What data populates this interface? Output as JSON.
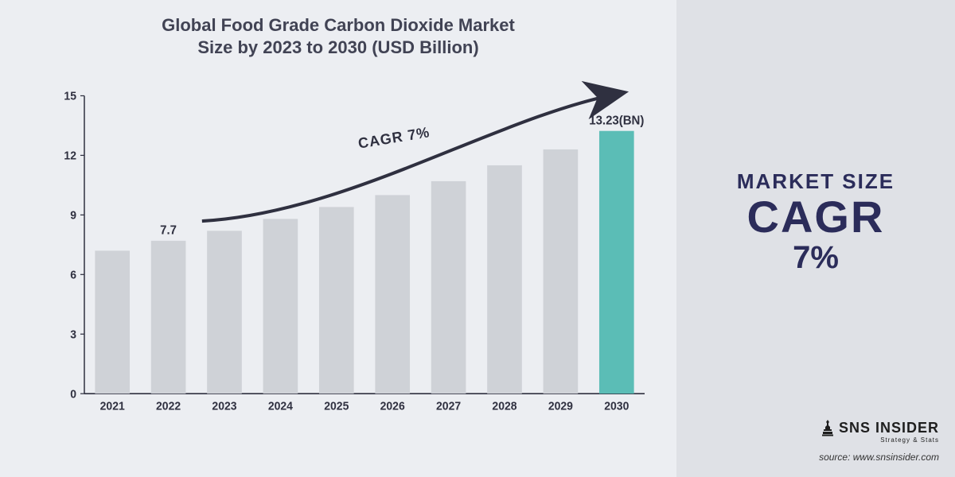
{
  "title": {
    "line1": "Global Food Grade Carbon Dioxide Market",
    "line2": "Size by 2023 to 2030 (USD Billion)"
  },
  "chart": {
    "type": "bar",
    "categories": [
      "2021",
      "2022",
      "2023",
      "2024",
      "2025",
      "2026",
      "2027",
      "2028",
      "2029",
      "2030"
    ],
    "values": [
      7.2,
      7.7,
      8.2,
      8.8,
      9.4,
      10.0,
      10.7,
      11.5,
      12.3,
      13.23
    ],
    "highlight_index": 9,
    "bar_color": "#cfd2d7",
    "highlight_color": "#5bbdb6",
    "axis_color": "#2f3040",
    "background": "#eceef2",
    "ylim": [
      0,
      15
    ],
    "yticks": [
      0,
      3,
      6,
      9,
      12,
      15
    ],
    "bar_width_ratio": 0.62,
    "label_above_index": 1,
    "label_above_text": "7.7",
    "last_label_text": "13.23(BN)",
    "cagr_text": "CAGR 7%",
    "title_fontsize": 22,
    "axis_fontsize": 14
  },
  "side": {
    "line1": "MARKET SIZE",
    "line2": "CAGR",
    "line3": "7%",
    "text_color": "#2b2c5a",
    "panel_bg": "#dfe1e6"
  },
  "logo": {
    "main": "SNS INSIDER",
    "sub": "Strategy & Stats"
  },
  "source": "source: www.snsinsider.com"
}
